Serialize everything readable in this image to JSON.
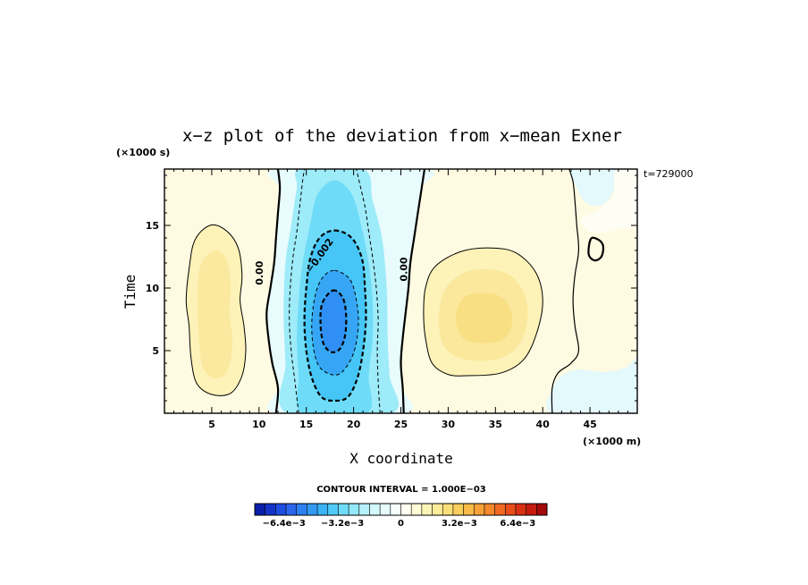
{
  "chart_data": {
    "type": "heatmap",
    "title": "x−z plot of the deviation from x−mean Exner",
    "xlabel": "X coordinate",
    "ylabel": "Time",
    "x_unit": "(×1000 m)",
    "y_unit": "(×1000 s)",
    "time_stamp": "t=729000",
    "xlim": [
      0,
      50
    ],
    "ylim": [
      0,
      19.5
    ],
    "x_ticks": [
      5,
      10,
      15,
      20,
      25,
      30,
      35,
      40,
      45
    ],
    "x_tick_labels": [
      "5",
      "10",
      "15",
      "20",
      "25",
      "30",
      "35",
      "40",
      "45"
    ],
    "y_ticks": [
      5,
      10,
      15
    ],
    "y_tick_labels": [
      "5",
      "10",
      "15"
    ],
    "contour_interval_text": "CONTOUR INTERVAL = 1.000E−03",
    "contour_labels": [
      "0.00",
      "−0.002",
      "0.00"
    ],
    "colorbar": {
      "range": [
        -0.008,
        0.008
      ],
      "tick_values": [
        -0.0064,
        -0.0032,
        0,
        0.0032,
        0.0064
      ],
      "tick_labels": [
        "−6.4e−3",
        "−3.2e−3",
        "0",
        "3.2e−3",
        "6.4e−3"
      ],
      "colors": [
        "#0a1ea8",
        "#1533c6",
        "#1f4de0",
        "#2b66ee",
        "#2f80f2",
        "#339af2",
        "#3ab4f4",
        "#4fcaf6",
        "#6edcf8",
        "#93e8fa",
        "#b6f1fb",
        "#d2f7fc",
        "#e8fbfd",
        "#f6fefe",
        "#fffef0",
        "#fffbd6",
        "#fdf4b6",
        "#fbec98",
        "#f9df78",
        "#f8cf5c",
        "#f7bb48",
        "#f6a238",
        "#f5872c",
        "#f06a22",
        "#e84c1a",
        "#d93014",
        "#c41a10",
        "#a50a0a"
      ]
    },
    "field_features": [
      {
        "name": "negative center",
        "x": 17.8,
        "y": 7.0,
        "value": -0.0045
      },
      {
        "name": "positive lobe east",
        "x": 34.0,
        "y": 8.0,
        "value": 0.0022
      },
      {
        "name": "positive lobe west",
        "x": 5.5,
        "y": 8.5,
        "value": 0.0018
      },
      {
        "name": "weak negative corner",
        "x": 46.0,
        "y": 19.0,
        "value": -0.0006
      },
      {
        "name": "weak negative bottom right",
        "x": 46.5,
        "y": 1.0,
        "value": -0.0005
      }
    ],
    "contours": {
      "zero_west": [
        [
          11.8,
          0
        ],
        [
          12.0,
          2
        ],
        [
          11.4,
          4
        ],
        [
          11.0,
          6
        ],
        [
          10.8,
          8
        ],
        [
          11.2,
          10
        ],
        [
          11.6,
          12
        ],
        [
          11.8,
          14
        ],
        [
          12.0,
          16
        ],
        [
          12.2,
          18
        ],
        [
          12.0,
          19.5
        ]
      ],
      "zero_mid": [
        [
          25.3,
          0
        ],
        [
          25.2,
          2
        ],
        [
          25.0,
          4
        ],
        [
          25.2,
          6
        ],
        [
          25.5,
          8
        ],
        [
          25.8,
          10
        ],
        [
          26.0,
          12
        ],
        [
          26.4,
          14
        ],
        [
          26.8,
          16
        ],
        [
          27.2,
          18
        ],
        [
          27.5,
          19.5
        ]
      ],
      "zero_east": [
        [
          42.8,
          19.5
        ],
        [
          43.2,
          18.5
        ],
        [
          43.4,
          17
        ],
        [
          43.6,
          15
        ],
        [
          43.8,
          13
        ],
        [
          43.4,
          11
        ],
        [
          43.2,
          9
        ],
        [
          43.4,
          7
        ],
        [
          43.8,
          5
        ],
        [
          43.0,
          4
        ],
        [
          41.6,
          3.2
        ],
        [
          41.0,
          2
        ],
        [
          41.0,
          0
        ]
      ],
      "pos_west": [
        [
          4.8,
          15.0
        ],
        [
          6.5,
          14.6
        ],
        [
          7.8,
          13.2
        ],
        [
          8.2,
          11
        ],
        [
          8.0,
          9
        ],
        [
          8.4,
          7
        ],
        [
          8.6,
          5
        ],
        [
          8.2,
          3
        ],
        [
          7.0,
          1.6
        ],
        [
          5.0,
          1.5
        ],
        [
          3.4,
          2.4
        ],
        [
          2.8,
          4.5
        ],
        [
          2.6,
          7
        ],
        [
          2.3,
          9
        ],
        [
          2.6,
          11.5
        ],
        [
          3.2,
          13.8
        ]
      ],
      "pos_east": [
        [
          34.5,
          13.2
        ],
        [
          37.2,
          12.8
        ],
        [
          39.3,
          11.2
        ],
        [
          40.0,
          9
        ],
        [
          39.4,
          6.5
        ],
        [
          38.0,
          4.3
        ],
        [
          35.5,
          3.2
        ],
        [
          32.0,
          3.0
        ],
        [
          30.0,
          3.1
        ],
        [
          28.3,
          4.0
        ],
        [
          27.6,
          6
        ],
        [
          27.4,
          8
        ],
        [
          27.6,
          10
        ],
        [
          28.6,
          11.7
        ],
        [
          31.3,
          12.9
        ]
      ],
      "island": [
        [
          45.2,
          14.0
        ],
        [
          46.0,
          13.8
        ],
        [
          46.4,
          13.3
        ],
        [
          46.2,
          12.5
        ],
        [
          45.5,
          12.2
        ],
        [
          44.9,
          12.6
        ],
        [
          44.9,
          13.4
        ]
      ],
      "neg1_west": [
        [
          14.2,
          0
        ],
        [
          13.8,
          2.5
        ],
        [
          13.4,
          5
        ],
        [
          13.2,
          7.5
        ],
        [
          13.3,
          10
        ],
        [
          13.6,
          12.5
        ],
        [
          14.0,
          14.5
        ],
        [
          14.3,
          16.5
        ],
        [
          14.6,
          18.5
        ],
        [
          14.8,
          19.5
        ]
      ],
      "neg1_east": [
        [
          22.8,
          0
        ],
        [
          22.6,
          2.5
        ],
        [
          22.5,
          5
        ],
        [
          22.6,
          7.5
        ],
        [
          22.4,
          10
        ],
        [
          22.0,
          12.5
        ],
        [
          21.6,
          14.5
        ],
        [
          21.2,
          16.5
        ],
        [
          20.6,
          18.5
        ],
        [
          20.3,
          19.5
        ]
      ],
      "neg2": [
        [
          18.0,
          14.6
        ],
        [
          19.8,
          14.0
        ],
        [
          20.9,
          12.3
        ],
        [
          21.2,
          10
        ],
        [
          21.3,
          7.5
        ],
        [
          21.0,
          5
        ],
        [
          20.4,
          2.8
        ],
        [
          19.4,
          1.3
        ],
        [
          18.0,
          1.0
        ],
        [
          16.6,
          1.3
        ],
        [
          15.6,
          2.8
        ],
        [
          15.0,
          5
        ],
        [
          14.8,
          7.5
        ],
        [
          15.0,
          10
        ],
        [
          15.4,
          12.3
        ],
        [
          16.4,
          14.0
        ]
      ],
      "neg3": [
        [
          18.0,
          11.4
        ],
        [
          19.6,
          10.7
        ],
        [
          20.3,
          9.0
        ],
        [
          20.5,
          7.0
        ],
        [
          20.0,
          4.8
        ],
        [
          18.8,
          3.3
        ],
        [
          17.6,
          3.1
        ],
        [
          16.3,
          3.8
        ],
        [
          15.7,
          5.5
        ],
        [
          15.6,
          7.5
        ],
        [
          16.0,
          9.6
        ],
        [
          16.8,
          10.9
        ]
      ],
      "neg4": [
        [
          17.8,
          9.8
        ],
        [
          18.8,
          9.3
        ],
        [
          19.2,
          8.0
        ],
        [
          19.1,
          6.2
        ],
        [
          18.5,
          5.1
        ],
        [
          17.6,
          4.9
        ],
        [
          16.8,
          5.6
        ],
        [
          16.5,
          7.2
        ],
        [
          16.7,
          8.8
        ]
      ]
    }
  }
}
